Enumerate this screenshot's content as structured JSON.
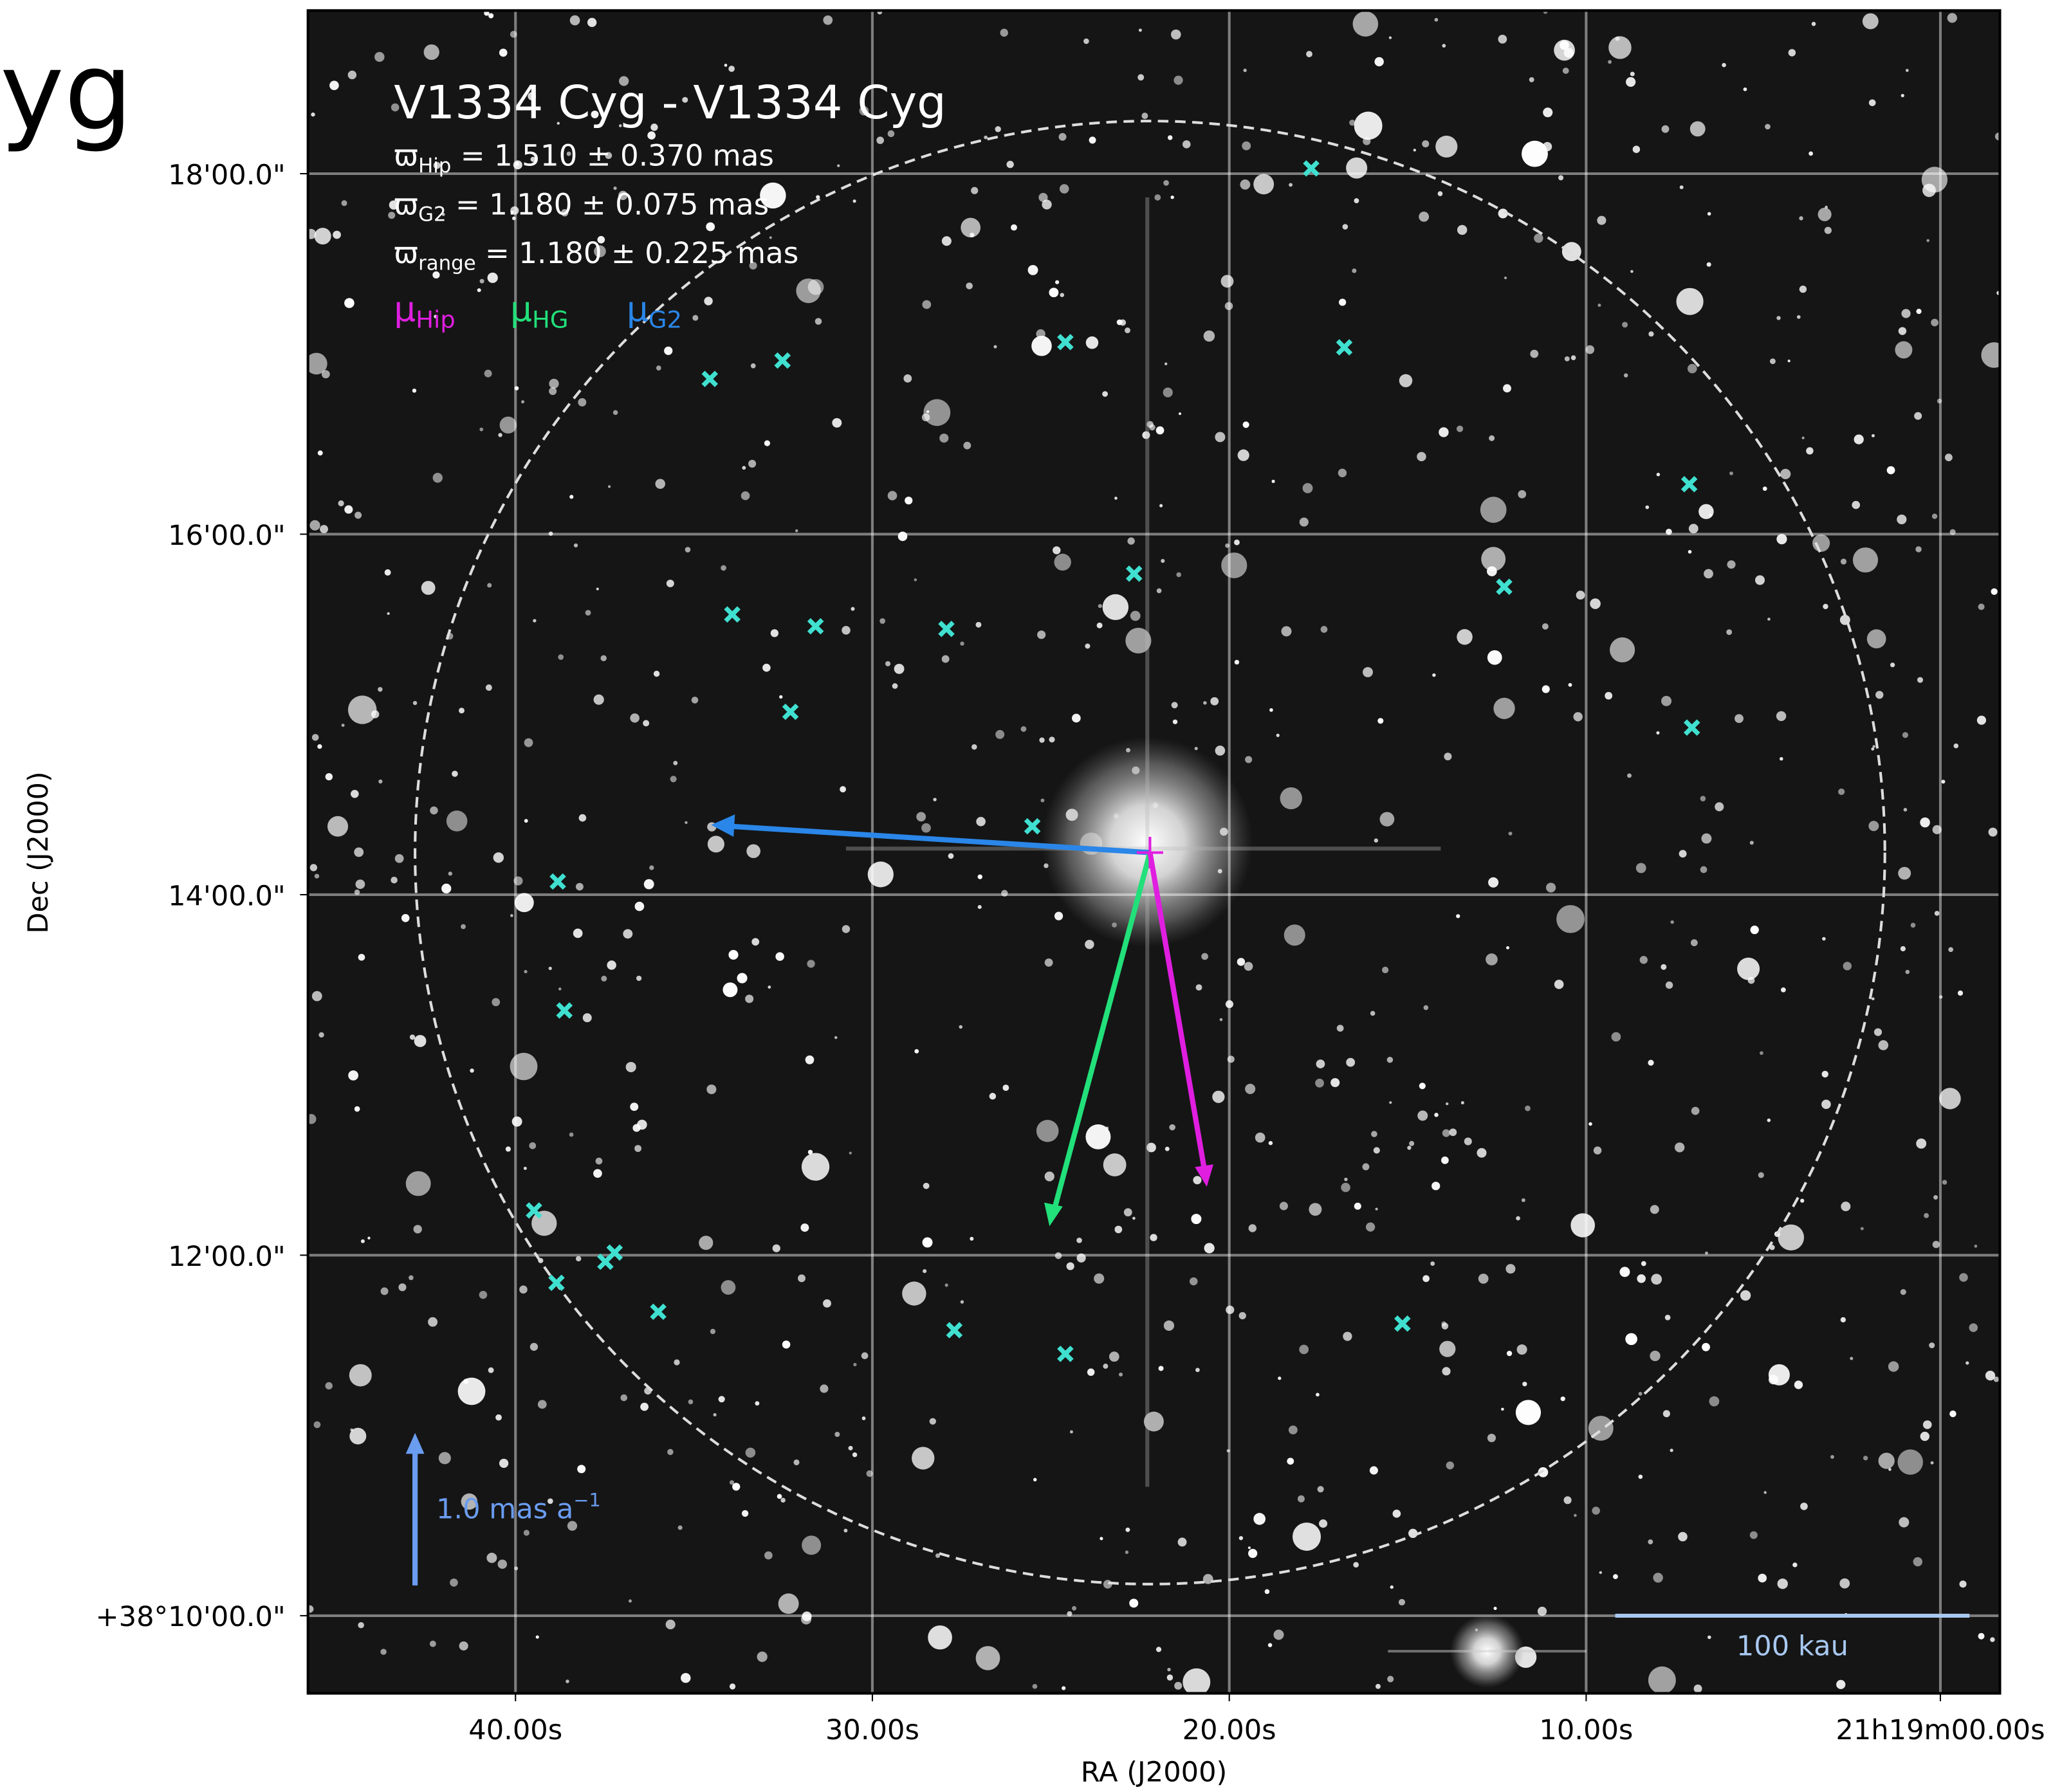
{
  "cropped_title": "yg",
  "plot": {
    "title": "V1334 Cyg - V1334 Cyg",
    "parallax": [
      {
        "symbol": "ϖ",
        "sub": "Hip",
        "text": " = 1.510 ± 0.370 mas"
      },
      {
        "symbol": "ϖ",
        "sub": "G2",
        "text": " = 1.180 ± 0.075 mas"
      },
      {
        "symbol": "ϖ",
        "sub": "range",
        "text": " = 1.180 ± 0.225 mas"
      }
    ],
    "legend": [
      {
        "symbol": "μ",
        "sub": "Hip",
        "color": "#e01ee0"
      },
      {
        "symbol": "μ",
        "sub": "HG",
        "color": "#22e07a"
      },
      {
        "symbol": "μ",
        "sub": "G2",
        "color": "#2a86e8"
      }
    ],
    "x_label": "RA (J2000)",
    "y_label": "Dec (J2000)",
    "x_tick_labels": [
      "40.00s",
      "30.00s",
      "20.00s",
      "10.00s",
      "21h19m00.00s"
    ],
    "y_tick_labels": [
      "18'00.0\"",
      "16'00.0\"",
      "14'00.0\"",
      "12'00.0\"",
      "+38°10'00.0\""
    ],
    "pm_scale": {
      "text": "1.0 mas a",
      "sup": "−1"
    },
    "distance_scale": "100 kau"
  }
}
